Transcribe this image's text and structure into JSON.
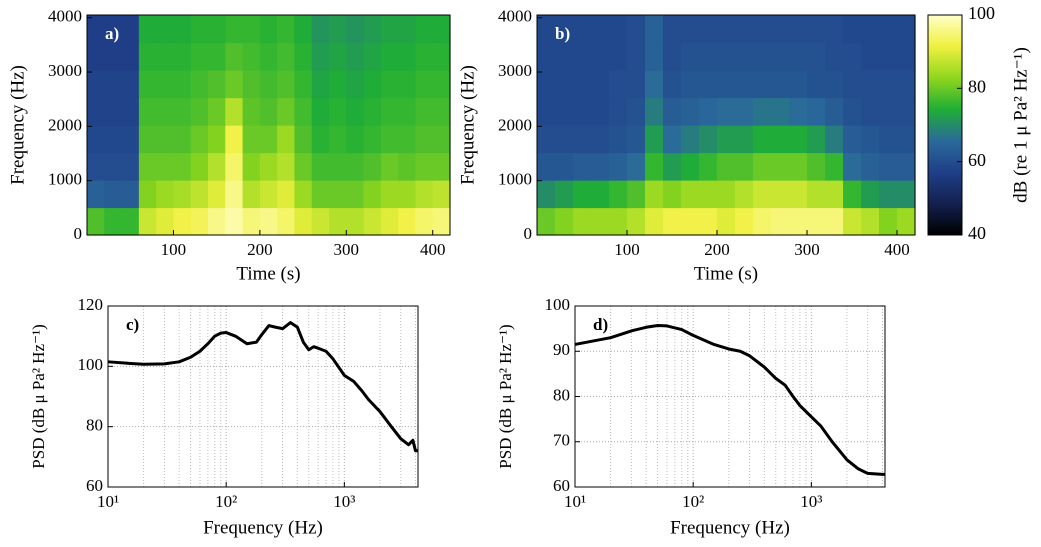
{
  "chart_data": [
    {
      "type": "heatmap",
      "label": "a)",
      "xlabel": "Time (s)",
      "ylabel": "Frequency (Hz)",
      "xlim": [
        0,
        420
      ],
      "xticks": [
        100,
        200,
        300,
        400
      ],
      "ylim": [
        0,
        4050
      ],
      "yticks": [
        0,
        1000,
        2000,
        3000,
        4000
      ],
      "z": [
        [
          78,
          76,
          76,
          88,
          90,
          92,
          93,
          96,
          98,
          95,
          96,
          94,
          90,
          88,
          86,
          86,
          88,
          90,
          92,
          94,
          95
        ],
        [
          64,
          63,
          63,
          82,
          84,
          85,
          87,
          90,
          96,
          86,
          88,
          90,
          84,
          80,
          80,
          80,
          82,
          84,
          84,
          86,
          87
        ],
        [
          60,
          60,
          60,
          80,
          80,
          80,
          82,
          86,
          94,
          82,
          84,
          86,
          80,
          77,
          77,
          77,
          78,
          80,
          79,
          80,
          80
        ],
        [
          59,
          59,
          59,
          78,
          78,
          78,
          80,
          82,
          92,
          80,
          80,
          84,
          78,
          75,
          76,
          75,
          76,
          77,
          77,
          78,
          78
        ],
        [
          58,
          58,
          58,
          77,
          77,
          77,
          78,
          80,
          86,
          79,
          78,
          80,
          77,
          74,
          75,
          74,
          75,
          76,
          76,
          77,
          77
        ],
        [
          58,
          58,
          58,
          76,
          76,
          76,
          77,
          78,
          80,
          78,
          77,
          78,
          76,
          73,
          74,
          73,
          74,
          75,
          75,
          76,
          76
        ],
        [
          57,
          57,
          57,
          75,
          75,
          75,
          76,
          76,
          78,
          77,
          76,
          77,
          75,
          72,
          73,
          72,
          73,
          74,
          74,
          75,
          75
        ],
        [
          57,
          57,
          57,
          74,
          74,
          74,
          75,
          75,
          76,
          76,
          75,
          76,
          74,
          71,
          72,
          71,
          72,
          73,
          73,
          74,
          74
        ]
      ]
    },
    {
      "type": "heatmap",
      "label": "b)",
      "xlabel": "Time (s)",
      "ylabel": "Frequency (Hz)",
      "xlim": [
        0,
        420
      ],
      "xticks": [
        100,
        200,
        300,
        400
      ],
      "ylim": [
        0,
        4050
      ],
      "yticks": [
        0,
        1000,
        2000,
        3000,
        4000
      ],
      "clim": [
        40,
        100
      ],
      "cticks": [
        40,
        60,
        80,
        100
      ],
      "clabel": "dB (re 1 μ Pa² Hz⁻¹)",
      "colormap": [
        "#000000",
        "#14204f",
        "#1f3f88",
        "#2a6a9a",
        "#1fae35",
        "#8fd61e",
        "#f0f040",
        "#ffffc8"
      ],
      "z": [
        [
          80,
          82,
          84,
          84,
          84,
          86,
          90,
          92,
          92,
          92,
          90,
          92,
          94,
          95,
          95,
          95,
          95,
          88,
          86,
          82,
          84
        ],
        [
          70,
          72,
          74,
          74,
          76,
          78,
          84,
          82,
          84,
          84,
          84,
          86,
          88,
          88,
          88,
          86,
          86,
          76,
          72,
          70,
          70
        ],
        [
          62,
          62,
          63,
          63,
          64,
          66,
          76,
          72,
          74,
          76,
          78,
          78,
          80,
          80,
          80,
          78,
          76,
          66,
          64,
          63,
          63
        ],
        [
          60,
          60,
          60,
          60,
          61,
          62,
          72,
          66,
          68,
          70,
          72,
          72,
          74,
          74,
          74,
          72,
          68,
          63,
          62,
          61,
          61
        ],
        [
          59,
          59,
          59,
          59,
          60,
          61,
          68,
          63,
          64,
          65,
          66,
          66,
          67,
          67,
          66,
          65,
          63,
          61,
          60,
          60,
          60
        ],
        [
          59,
          59,
          59,
          59,
          60,
          60,
          66,
          61,
          62,
          62,
          62,
          62,
          62,
          62,
          62,
          61,
          61,
          60,
          60,
          60,
          60
        ],
        [
          59,
          59,
          59,
          59,
          59,
          60,
          64,
          60,
          61,
          61,
          61,
          61,
          61,
          61,
          61,
          61,
          60,
          60,
          59,
          59,
          59
        ],
        [
          59,
          59,
          59,
          59,
          59,
          60,
          64,
          60,
          60,
          60,
          60,
          60,
          60,
          60,
          60,
          60,
          60,
          59,
          59,
          59,
          59
        ]
      ]
    },
    {
      "type": "line",
      "label": "c)",
      "xlabel": "Frequency (Hz)",
      "ylabel": "PSD (dB μ Pa² Hz⁻¹)",
      "xscale": "log",
      "xlim": [
        10,
        4200
      ],
      "xticks": [
        {
          "value": 10,
          "label": "10¹"
        },
        {
          "value": 100,
          "label": "10²"
        },
        {
          "value": 1000,
          "label": "10³"
        }
      ],
      "xminorticks": [
        20,
        30,
        40,
        50,
        60,
        70,
        80,
        90,
        200,
        300,
        400,
        500,
        600,
        700,
        800,
        900,
        2000,
        3000,
        4000
      ],
      "ylim": [
        60,
        120
      ],
      "yticks": [
        60,
        80,
        100,
        120
      ],
      "grid": true,
      "color": "#000000",
      "x": [
        10,
        15,
        20,
        30,
        40,
        50,
        60,
        70,
        80,
        90,
        100,
        120,
        150,
        180,
        200,
        230,
        260,
        300,
        350,
        400,
        450,
        500,
        550,
        600,
        700,
        800,
        1000,
        1200,
        1400,
        1600,
        2000,
        2500,
        3000,
        3500,
        3800,
        4000,
        4200
      ],
      "values": [
        101.5,
        101,
        100.7,
        100.8,
        101.5,
        103,
        105,
        107.5,
        110,
        111,
        111.2,
        110,
        107.5,
        108,
        110.5,
        113.5,
        113,
        112.5,
        114.5,
        113,
        108,
        105.5,
        106.5,
        106,
        105,
        102.5,
        97,
        95,
        92,
        89,
        85,
        80,
        76,
        74,
        75.5,
        72,
        72
      ]
    },
    {
      "type": "line",
      "label": "d)",
      "xlabel": "Frequency (Hz)",
      "ylabel": "PSD (dB μ Pa² Hz⁻¹)",
      "xscale": "log",
      "xlim": [
        10,
        4200
      ],
      "xticks": [
        {
          "value": 10,
          "label": "10¹"
        },
        {
          "value": 100,
          "label": "10²"
        },
        {
          "value": 1000,
          "label": "10³"
        }
      ],
      "xminorticks": [
        20,
        30,
        40,
        50,
        60,
        70,
        80,
        90,
        200,
        300,
        400,
        500,
        600,
        700,
        800,
        900,
        2000,
        3000,
        4000
      ],
      "ylim": [
        60,
        100
      ],
      "yticks": [
        60,
        70,
        80,
        90,
        100
      ],
      "grid": true,
      "color": "#000000",
      "x": [
        10,
        20,
        30,
        40,
        50,
        60,
        80,
        100,
        150,
        200,
        250,
        300,
        400,
        500,
        600,
        700,
        800,
        1000,
        1200,
        1500,
        2000,
        2500,
        3000,
        4000,
        4200
      ],
      "values": [
        91.5,
        93,
        94.5,
        95.3,
        95.7,
        95.6,
        94.8,
        93.5,
        91.5,
        90.5,
        90,
        89,
        86.5,
        84,
        82.5,
        80,
        78,
        75.5,
        73.5,
        70,
        66,
        64,
        63,
        62.8,
        62.8
      ]
    }
  ]
}
